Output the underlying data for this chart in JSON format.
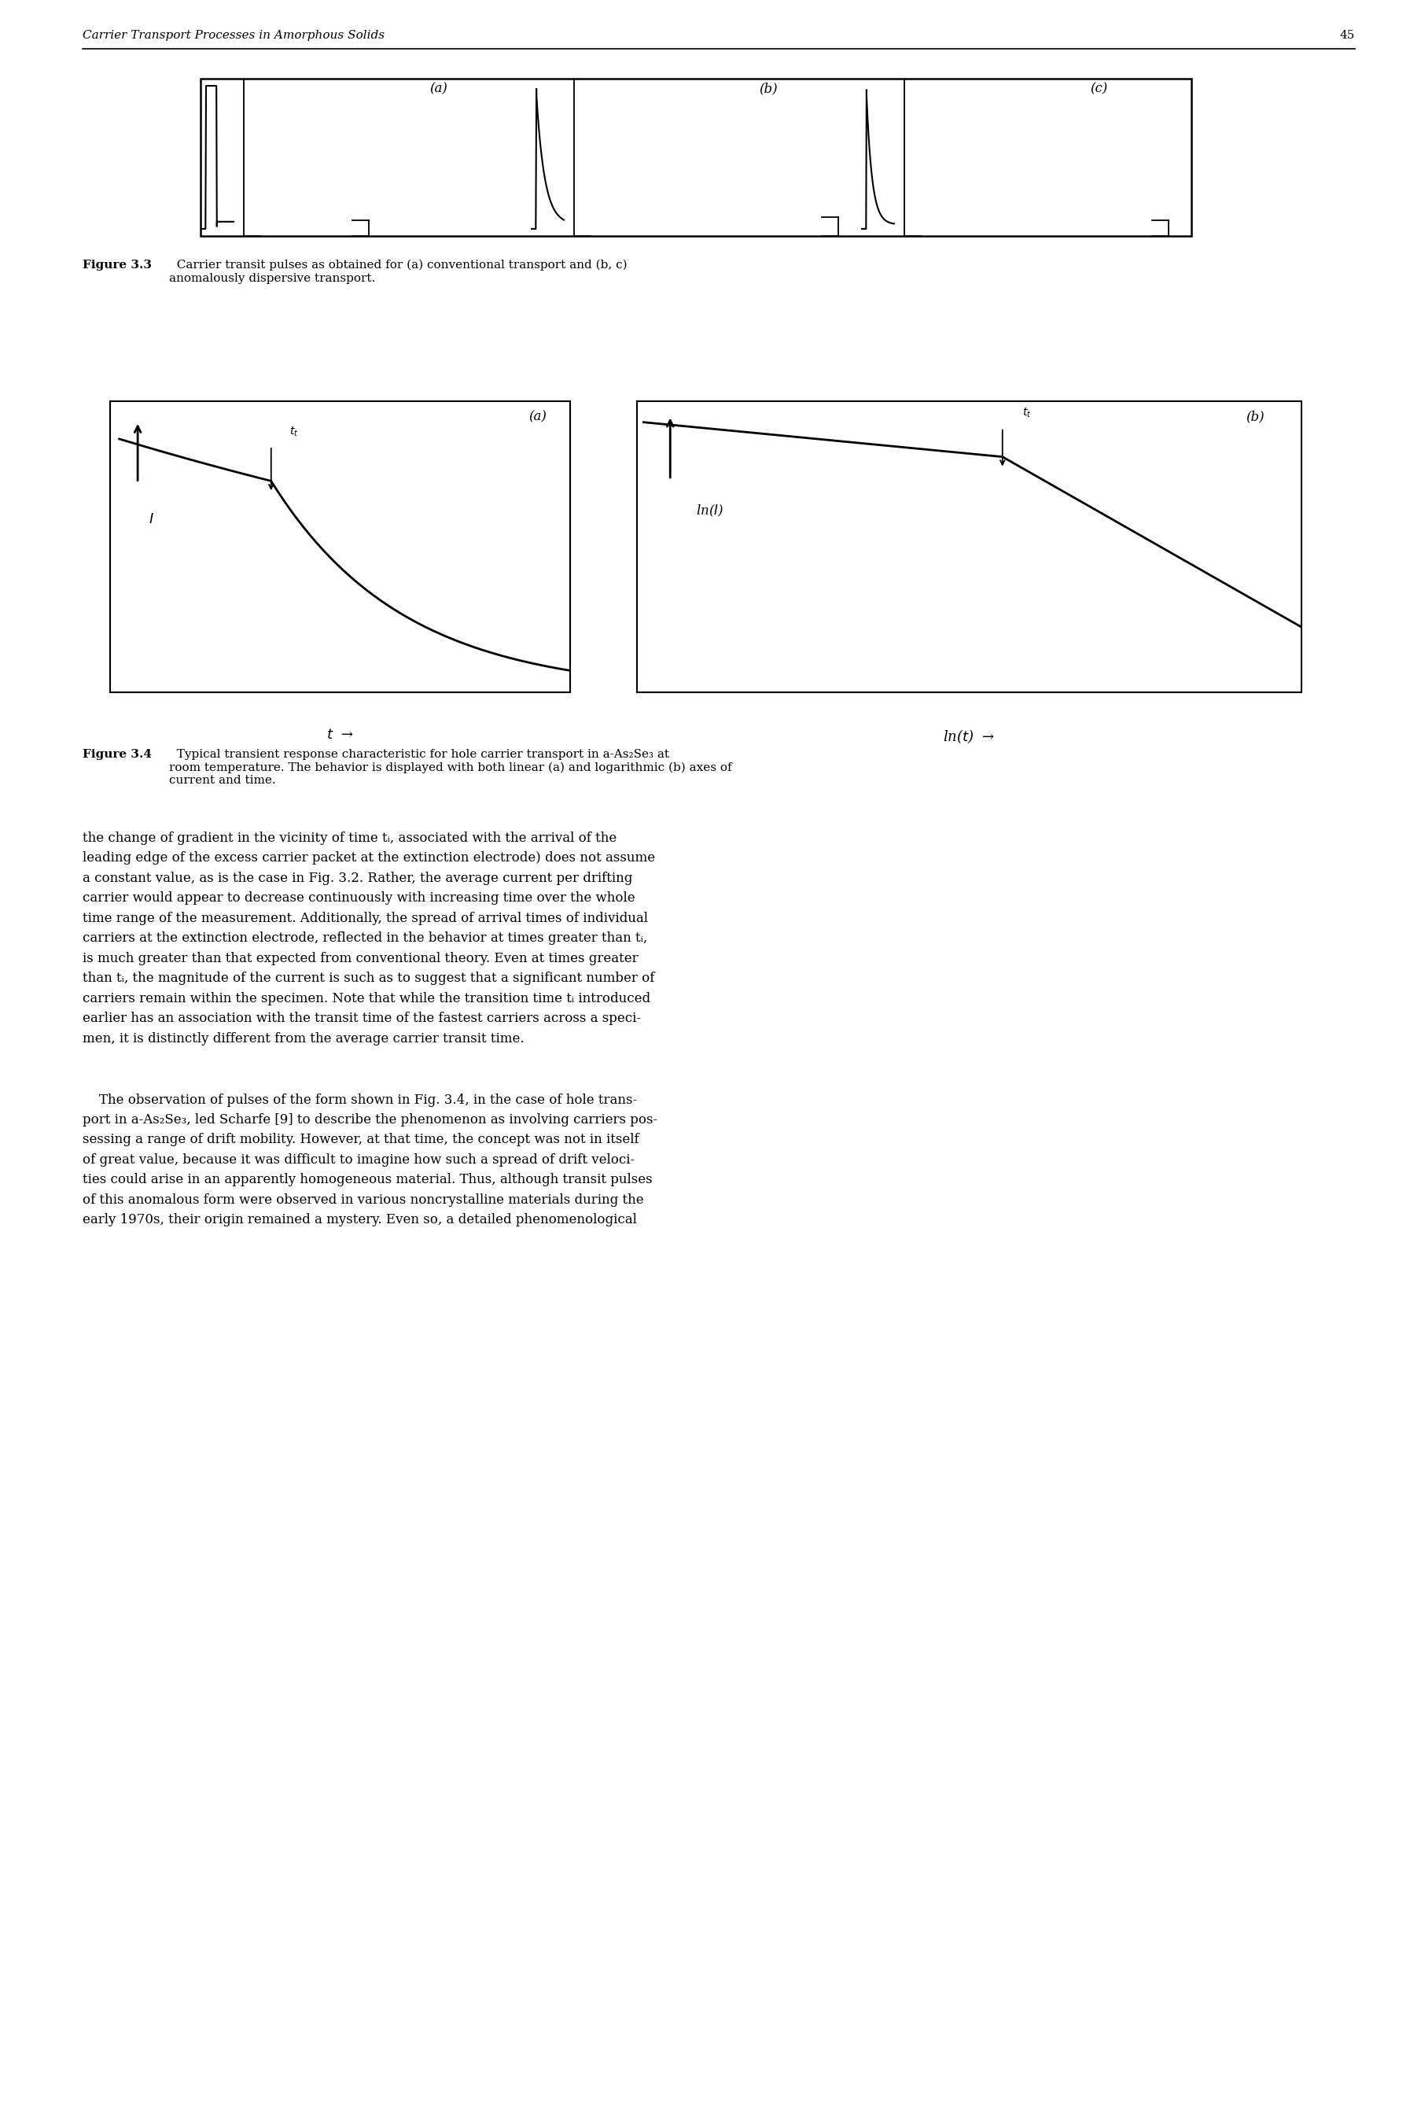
{
  "page_header": "Carrier Transport Processes in Amorphous Solids",
  "page_number": "45",
  "fig33_caption_bold": "Figure 3.3",
  "fig33_caption_rest": "  Carrier transit pulses as obtained for (a) conventional transport and (b, c)\nanomalously dispersive transport.",
  "fig34_caption_bold": "Figure 3.4",
  "fig34_caption_rest": "  Typical transient response characteristic for hole carrier transport in a-As₂Se₃ at\nroom temperature. The behavior is displayed with both linear (a) and logarithmic (b) axes of\ncurrent and time.",
  "body_para1": "the change of gradient in the vicinity of time tᵢ, associated with the arrival of the\nleading edge of the excess carrier packet at the extinction electrode) does not assume\na constant value, as is the case in Fig. 3.2. Rather, the average current per drifting\ncarrier would appear to decrease continuously with increasing time over the whole\ntime range of the measurement. Additionally, the spread of arrival times of individual\ncarriers at the extinction electrode, reflected in the behavior at times greater than tᵢ,\nis much greater than that expected from conventional theory. Even at times greater\nthan tᵢ, the magnitude of the current is such as to suggest that a significant number of\ncarriers remain within the specimen. Note that while the transition time tᵢ introduced\nearlier has an association with the transit time of the fastest carriers across a speci-\nmen, it is distinctly different from the average carrier transit time.",
  "body_para2": "    The observation of pulses of the form shown in Fig. 3.4, in the case of hole trans-\nport in a-As₂Se₃, led Scharfe [9] to describe the phenomenon as involving carriers pos-\nsessing a range of drift mobility. However, at that time, the concept was not in itself\nof great value, because it was difficult to imagine how such a spread of drift veloci-\nties could arise in an apparently homogeneous material. Thus, although transit pulses\nof this anomalous form were observed in various noncrystalline materials during the\nearly 1970s, their origin remained a mystery. Even so, a detailed phenomenological",
  "bg": "#ffffff"
}
